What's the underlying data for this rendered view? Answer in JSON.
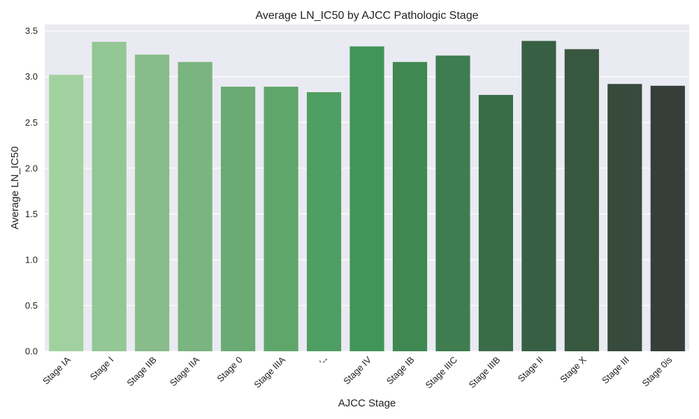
{
  "chart_data": {
    "type": "bar",
    "title": "Average LN_IC50 by AJCC Pathologic Stage",
    "xlabel": "AJCC Stage",
    "ylabel": "Average LN_IC50",
    "categories": [
      "Stage IA",
      "Stage I",
      "Stage IIB",
      "Stage IIA",
      "Stage 0",
      "Stage IIIA",
      "'--",
      "Stage IV",
      "Stage IB",
      "Stage IIIC",
      "Stage IIIB",
      "Stage II",
      "Stage X",
      "Stage III",
      "Stage 0is"
    ],
    "values": [
      3.02,
      3.38,
      3.24,
      3.16,
      2.89,
      2.89,
      2.83,
      3.33,
      3.16,
      3.23,
      2.8,
      3.39,
      3.3,
      2.92,
      2.9
    ],
    "ylim": [
      0,
      3.57
    ],
    "yticks": [
      "0.0",
      "0.5",
      "1.0",
      "1.5",
      "2.0",
      "2.5",
      "3.0",
      "3.5"
    ],
    "grid": true,
    "colors": {
      "background": "#eaeaf2",
      "grid": "#ffffff",
      "bars": [
        "#a2d1a0",
        "#93c794",
        "#88bc8a",
        "#7ab47f",
        "#6aaa73",
        "#5fa66b",
        "#4f9e62",
        "#419557",
        "#3f8852",
        "#3f7c50",
        "#3a6c49",
        "#375f44",
        "#38573f",
        "#374a3b",
        "#353e38"
      ]
    }
  }
}
